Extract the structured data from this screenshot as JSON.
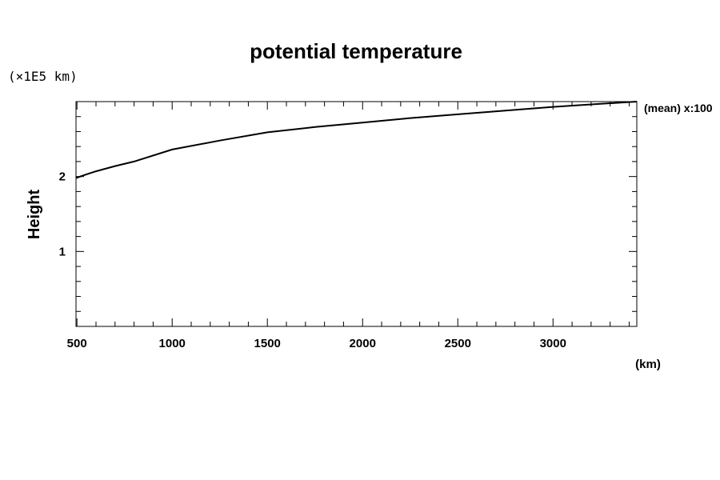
{
  "chart_data": {
    "type": "line",
    "title": "potential temperature",
    "xlabel": "(km)",
    "ylabel": "Height",
    "y_unit_label": "(×1E5 km)",
    "annotation": "(mean) x:100",
    "xlim": [
      495,
      3440
    ],
    "ylim": [
      0,
      3
    ],
    "x_ticks": [
      500,
      1000,
      1500,
      2000,
      2500,
      3000
    ],
    "x_tick_labels": [
      "500",
      "1000",
      "1500",
      "2000",
      "2500",
      "3000"
    ],
    "y_ticks": [
      1,
      2
    ],
    "y_tick_labels": [
      "1",
      "2"
    ],
    "grid": false,
    "series": [
      {
        "name": "potential temperature",
        "x": [
          495,
          550,
          600,
          700,
          800,
          1000,
          1250,
          1500,
          1750,
          2000,
          2250,
          2500,
          2750,
          3000,
          3250,
          3440
        ],
        "y": [
          1.98,
          2.03,
          2.07,
          2.14,
          2.2,
          2.36,
          2.48,
          2.59,
          2.66,
          2.72,
          2.78,
          2.83,
          2.88,
          2.93,
          2.97,
          3.0
        ]
      }
    ]
  }
}
